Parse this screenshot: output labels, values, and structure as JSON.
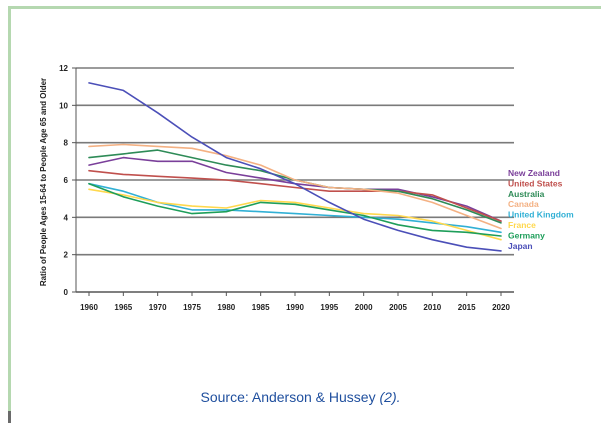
{
  "chart_data": {
    "type": "line",
    "title": "",
    "ylabel": "Ratio of People Ages 15-64 to People Age 65 and Older",
    "xlabel": "",
    "ylim": [
      0,
      12
    ],
    "y_ticks": [
      "0",
      "2",
      "4",
      "6",
      "8",
      "10",
      "12"
    ],
    "x": [
      "1960",
      "1965",
      "1970",
      "1975",
      "1980",
      "1985",
      "1990",
      "1995",
      "2000",
      "2005",
      "2010",
      "2015",
      "2020"
    ],
    "grid": "horizontal",
    "legend_position": "right",
    "series": [
      {
        "name": "New Zealand",
        "color": "#7a3f9a",
        "values": [
          6.8,
          7.2,
          7.0,
          7.0,
          6.4,
          6.1,
          5.8,
          5.6,
          5.5,
          5.5,
          5.1,
          4.6,
          3.8
        ]
      },
      {
        "name": "United States",
        "color": "#c0504d",
        "values": [
          6.5,
          6.3,
          6.2,
          6.1,
          6.0,
          5.8,
          5.6,
          5.4,
          5.4,
          5.4,
          5.2,
          4.5,
          3.8
        ]
      },
      {
        "name": "Australia",
        "color": "#2e8b57",
        "values": [
          7.2,
          7.4,
          7.6,
          7.2,
          6.8,
          6.5,
          6.0,
          5.6,
          5.5,
          5.4,
          5.0,
          4.4,
          3.7
        ]
      },
      {
        "name": "Canada",
        "color": "#f4b183",
        "values": [
          7.8,
          7.9,
          7.8,
          7.7,
          7.3,
          6.8,
          6.0,
          5.6,
          5.5,
          5.3,
          4.8,
          4.1,
          3.4
        ]
      },
      {
        "name": "United Kingdom",
        "color": "#31b0d5",
        "values": [
          5.8,
          5.4,
          4.8,
          4.4,
          4.4,
          4.3,
          4.2,
          4.1,
          4.0,
          3.9,
          3.7,
          3.5,
          3.2
        ]
      },
      {
        "name": "France",
        "color": "#ffd84d",
        "values": [
          5.5,
          5.2,
          4.8,
          4.6,
          4.5,
          4.9,
          4.8,
          4.5,
          4.2,
          4.1,
          3.8,
          3.3,
          2.8
        ]
      },
      {
        "name": "Germany",
        "color": "#1e9e5a",
        "values": [
          5.8,
          5.1,
          4.6,
          4.2,
          4.3,
          4.8,
          4.7,
          4.4,
          4.1,
          3.6,
          3.3,
          3.2,
          3.0
        ]
      },
      {
        "name": "Japan",
        "color": "#4b4fb8",
        "values": [
          11.2,
          10.8,
          9.6,
          8.3,
          7.2,
          6.6,
          5.8,
          4.8,
          3.9,
          3.3,
          2.8,
          2.4,
          2.2
        ]
      }
    ],
    "colors": {
      "axis": "#555555",
      "grid": "#7a7a7a"
    }
  },
  "caption": {
    "source_prefix": "Source: Anderson & Hussey ",
    "citation": "(2)."
  }
}
